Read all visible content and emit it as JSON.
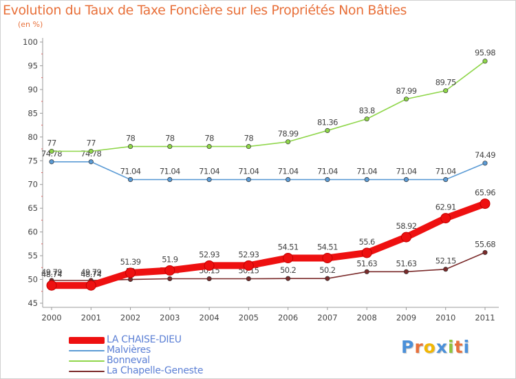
{
  "chart_data": {
    "type": "line",
    "title": "Evolution du Taux de Taxe Foncière sur les Propriétés Non Bâties",
    "subtitle": "(en %)",
    "x": [
      "2000",
      "2001",
      "2002",
      "2003",
      "2004",
      "2005",
      "2006",
      "2007",
      "2008",
      "2009",
      "2010",
      "2011"
    ],
    "ylim": [
      45,
      100
    ],
    "yticks": [
      45,
      50,
      55,
      60,
      65,
      70,
      75,
      80,
      85,
      90,
      95,
      100
    ],
    "grid": false,
    "legend_position": "bottom-left",
    "series": [
      {
        "name": "LA CHAISE-DIEU",
        "color": "#ee1010",
        "label_color": "#444444",
        "emphasis": true,
        "values": [
          48.74,
          48.74,
          51.39,
          51.9,
          52.93,
          52.93,
          54.51,
          54.51,
          55.6,
          58.92,
          62.91,
          65.96
        ],
        "labels": [
          "48.74",
          "48.74",
          "51.39",
          "51.9",
          "52.93",
          "52.93",
          "54.51",
          "54.51",
          "55.6",
          "58.92",
          "62.91",
          "65.96"
        ]
      },
      {
        "name": "Malvières",
        "color": "#5b9bd5",
        "label_color": "#444444",
        "values": [
          74.78,
          74.78,
          71.04,
          71.04,
          71.04,
          71.04,
          71.04,
          71.04,
          71.04,
          71.04,
          71.04,
          74.49
        ],
        "labels": [
          "74.78",
          "74.78",
          "71.04",
          "71.04",
          "71.04",
          "71.04",
          "71.04",
          "71.04",
          "71.04",
          "71.04",
          "71.04",
          "74.49"
        ]
      },
      {
        "name": "Bonneval",
        "color": "#8fd64a",
        "label_color": "#444444",
        "values": [
          77,
          77,
          78,
          78,
          78,
          78,
          78.99,
          81.36,
          83.8,
          87.99,
          89.75,
          95.98
        ],
        "labels": [
          "77",
          "77",
          "78",
          "78",
          "78",
          "78",
          "78.99",
          "81.36",
          "83.8",
          "87.99",
          "89.75",
          "95.98"
        ]
      },
      {
        "name": "La Chapelle-Geneste",
        "color": "#7a2a2a",
        "label_color": "#444444",
        "values": [
          49.79,
          49.79,
          50,
          50.15,
          50.15,
          50.15,
          50.2,
          50.2,
          51.63,
          51.63,
          52.15,
          55.68
        ],
        "labels": [
          "49.79",
          "49.79",
          "50",
          "50.15",
          "50.15",
          "50.15",
          "50.2",
          "50.2",
          "51.63",
          "51.63",
          "52.15",
          "55.68"
        ]
      }
    ]
  },
  "logo": {
    "letters": [
      "P",
      "r",
      "o",
      "x",
      "i",
      "t",
      "i"
    ],
    "colors": [
      "#4a90d9",
      "#e8703a",
      "#f2b705",
      "#4a90d9",
      "#8fc33a",
      "#e8703a",
      "#4a90d9"
    ]
  }
}
